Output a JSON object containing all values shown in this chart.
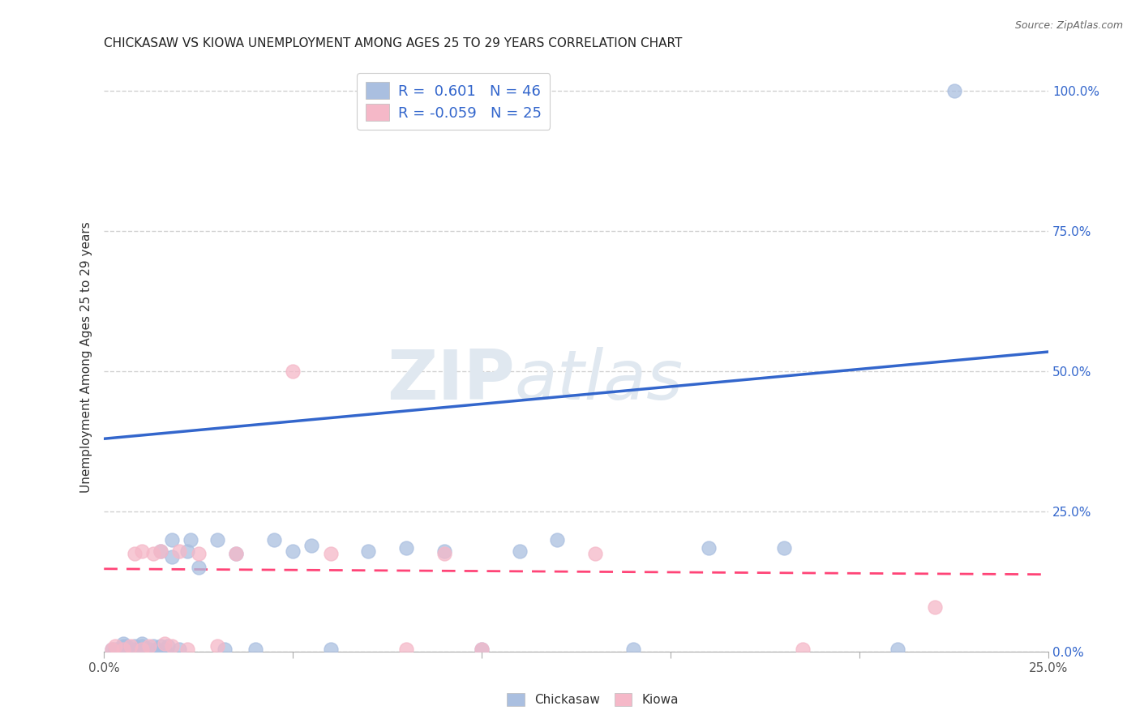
{
  "title": "CHICKASAW VS KIOWA UNEMPLOYMENT AMONG AGES 25 TO 29 YEARS CORRELATION CHART",
  "source": "Source: ZipAtlas.com",
  "ylabel": "Unemployment Among Ages 25 to 29 years",
  "xlim": [
    0,
    0.25
  ],
  "ylim": [
    0,
    1.05
  ],
  "xtick_vals": [
    0.0,
    0.05,
    0.1,
    0.15,
    0.2,
    0.25
  ],
  "ytick_vals": [
    0.0,
    0.25,
    0.5,
    0.75,
    1.0
  ],
  "xtick_labels": [
    "0.0%",
    "",
    "",
    "",
    "",
    "25.0%"
  ],
  "ytick_labels": [
    "0.0%",
    "25.0%",
    "50.0%",
    "75.0%",
    "100.0%"
  ],
  "chickasaw_color": "#AABFE0",
  "kiowa_color": "#F5B8C8",
  "chickasaw_line_color": "#3366CC",
  "kiowa_line_color": "#FF4477",
  "label_color": "#3366CC",
  "chickasaw_R": "0.601",
  "chickasaw_N": "46",
  "kiowa_R": "-0.059",
  "kiowa_N": "25",
  "watermark_zip": "ZIP",
  "watermark_atlas": "atlas",
  "chickasaw_x": [
    0.002,
    0.003,
    0.004,
    0.005,
    0.005,
    0.006,
    0.006,
    0.007,
    0.008,
    0.008,
    0.009,
    0.01,
    0.01,
    0.01,
    0.012,
    0.013,
    0.014,
    0.015,
    0.015,
    0.016,
    0.017,
    0.018,
    0.018,
    0.02,
    0.022,
    0.023,
    0.025,
    0.03,
    0.032,
    0.035,
    0.04,
    0.045,
    0.05,
    0.055,
    0.06,
    0.07,
    0.08,
    0.09,
    0.1,
    0.11,
    0.12,
    0.14,
    0.16,
    0.18,
    0.21,
    0.225
  ],
  "chickasaw_y": [
    0.005,
    0.005,
    0.005,
    0.01,
    0.015,
    0.005,
    0.01,
    0.005,
    0.005,
    0.01,
    0.005,
    0.005,
    0.01,
    0.015,
    0.005,
    0.01,
    0.005,
    0.01,
    0.18,
    0.005,
    0.01,
    0.17,
    0.2,
    0.005,
    0.18,
    0.2,
    0.15,
    0.2,
    0.005,
    0.175,
    0.005,
    0.2,
    0.18,
    0.19,
    0.005,
    0.18,
    0.185,
    0.18,
    0.005,
    0.18,
    0.2,
    0.005,
    0.185,
    0.185,
    0.005,
    1.0
  ],
  "kiowa_x": [
    0.002,
    0.003,
    0.005,
    0.007,
    0.008,
    0.01,
    0.01,
    0.012,
    0.013,
    0.015,
    0.016,
    0.018,
    0.02,
    0.022,
    0.025,
    0.03,
    0.035,
    0.05,
    0.06,
    0.08,
    0.09,
    0.1,
    0.13,
    0.185,
    0.22
  ],
  "kiowa_y": [
    0.005,
    0.01,
    0.005,
    0.01,
    0.175,
    0.005,
    0.18,
    0.01,
    0.175,
    0.18,
    0.015,
    0.01,
    0.18,
    0.005,
    0.175,
    0.01,
    0.175,
    0.5,
    0.175,
    0.005,
    0.175,
    0.005,
    0.175,
    0.005,
    0.08
  ],
  "blue_line_x0": 0.0,
  "blue_line_y0": 0.38,
  "blue_line_x1": 0.25,
  "blue_line_y1": 0.535,
  "pink_line_x0": 0.0,
  "pink_line_y0": 0.148,
  "pink_line_x1": 0.25,
  "pink_line_y1": 0.138
}
